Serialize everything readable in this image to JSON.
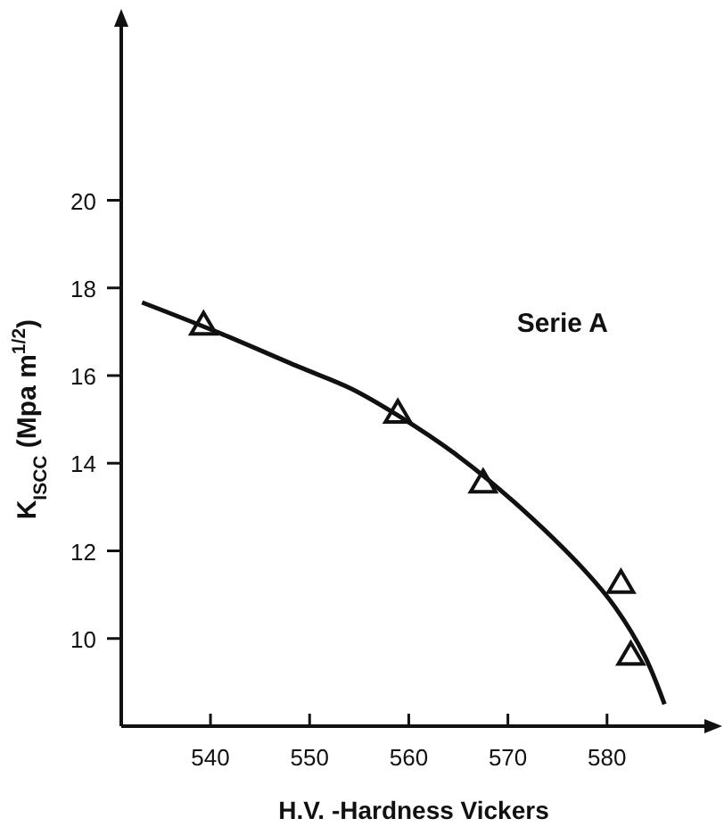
{
  "chart_data": {
    "type": "scatter",
    "xlabel": "H.V. -Hardness Vickers",
    "ylabel": "K$_{ISCC}$ (Mpa m$^{1/2}$)",
    "xlim": [
      531,
      590
    ],
    "ylim": [
      8,
      24
    ],
    "xticks": [
      540,
      550,
      560,
      570,
      580
    ],
    "yticks": [
      10,
      12,
      14,
      16,
      18,
      20
    ],
    "grid": false,
    "marker": "triangle",
    "series": [
      {
        "name": "Serie A",
        "color": "#111111",
        "x": [
          539.3,
          558.9,
          567.5,
          581.4,
          582.4
        ],
        "values": [
          17.15,
          15.14,
          13.55,
          11.26,
          9.62
        ]
      },
      {
        "type": "line",
        "color": "#111111",
        "marker": "none",
        "x": [
          533.1,
          540.6,
          548.9,
          554.2,
          558.9,
          565,
          570.7,
          577.8,
          580.8,
          583.8,
          585.8
        ],
        "values": [
          17.67,
          17.0,
          16.2,
          15.7,
          15.09,
          14.16,
          13.1,
          11.54,
          10.72,
          9.6,
          8.5
        ]
      }
    ]
  }
}
